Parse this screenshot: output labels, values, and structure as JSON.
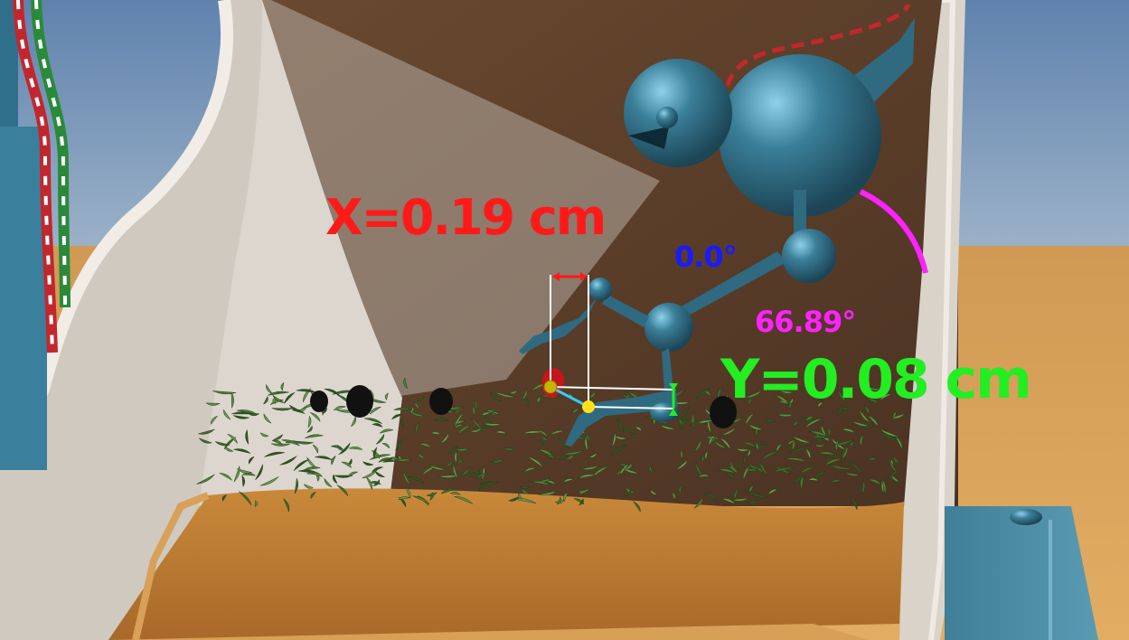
{
  "measurements": {
    "x_offset_label": "X=0.19 cm",
    "y_offset_label": "Y=0.08 cm",
    "yaw_angle_label": "0.0°",
    "pitch_angle_label": "66.89°"
  },
  "colors": {
    "x_axis": "#ff1a1a",
    "y_axis": "#22ee22",
    "yaw": "#1a1aff",
    "pitch": "#ff22ff",
    "gripper_marker": "#ffe01a",
    "target_marker": "#c4161c",
    "robot_body": "#2e6a82",
    "sky": "#6f8fb3",
    "sand": "#d9a055",
    "soil": "#b87a30",
    "pot_wall": "#d9d4cc",
    "pot_interior": "#5a3d28",
    "plant": "#3f6b2e"
  },
  "icons": {
    "target": "strawberry-target-icon",
    "gripper": "gripper-point-icon",
    "pitch_arc": "pitch-arc-icon",
    "x_axis_marker": "x-axis-arrow-icon",
    "y_axis_marker": "y-axis-arrow-icon"
  }
}
